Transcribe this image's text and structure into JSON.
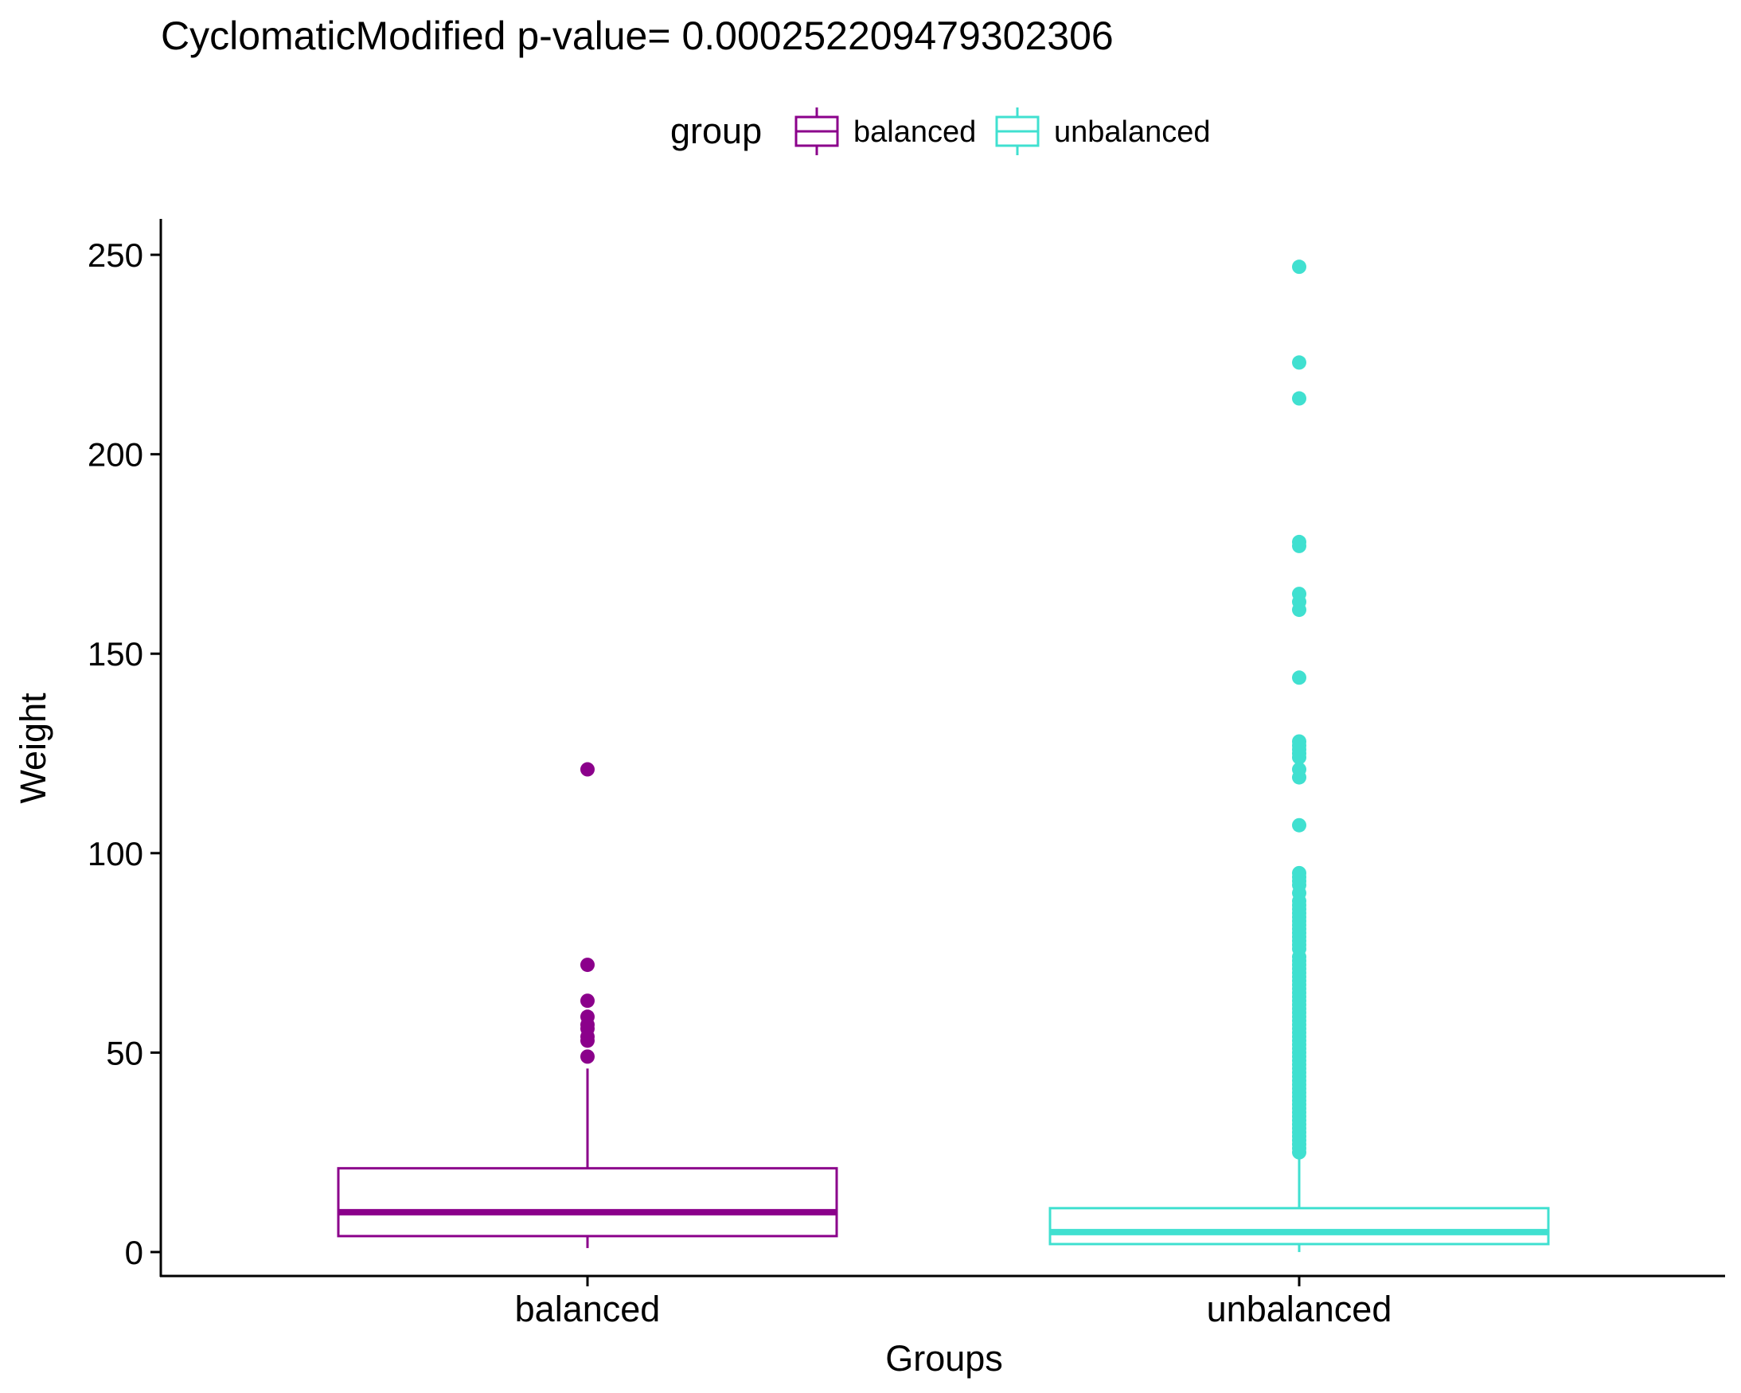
{
  "chart_data": {
    "type": "boxplot",
    "title": "CyclomaticModified  p-value= 0.000252209479302306",
    "xlabel": "Groups",
    "ylabel": "Weight",
    "ylim": [
      -6,
      259
    ],
    "yticks": [
      0,
      50,
      100,
      150,
      200,
      250
    ],
    "grid": false,
    "legend": {
      "title": "group",
      "placement": "top",
      "entries": [
        "balanced",
        "unbalanced"
      ]
    },
    "categories": [
      "balanced",
      "unbalanced"
    ],
    "series": [
      {
        "name": "balanced",
        "color": "#8B008B",
        "whisker_low": 1,
        "q1": 4,
        "median": 10,
        "q3": 21,
        "whisker_high": 46,
        "outliers": [
          49,
          53,
          54,
          56,
          57,
          59,
          63,
          72,
          121
        ]
      },
      {
        "name": "unbalanced",
        "color": "#40E0D0",
        "whisker_low": 0,
        "q1": 2,
        "median": 5,
        "q3": 11,
        "whisker_high": 24,
        "outliers": [
          25,
          26,
          27,
          28,
          29,
          30,
          31,
          32,
          33,
          34,
          35,
          36,
          37,
          38,
          39,
          40,
          41,
          42,
          43,
          44,
          45,
          46,
          47,
          48,
          49,
          50,
          51,
          52,
          53,
          54,
          55,
          56,
          57,
          58,
          59,
          60,
          61,
          62,
          63,
          64,
          65,
          66,
          67,
          68,
          69,
          70,
          71,
          72,
          73,
          74,
          76,
          77,
          78,
          79,
          80,
          81,
          82,
          83,
          84,
          85,
          86,
          87,
          88,
          90,
          92,
          93,
          94,
          95,
          107,
          119,
          121,
          124,
          125,
          126,
          127,
          128,
          144,
          161,
          163,
          165,
          177,
          178,
          214,
          223,
          247
        ]
      }
    ]
  }
}
